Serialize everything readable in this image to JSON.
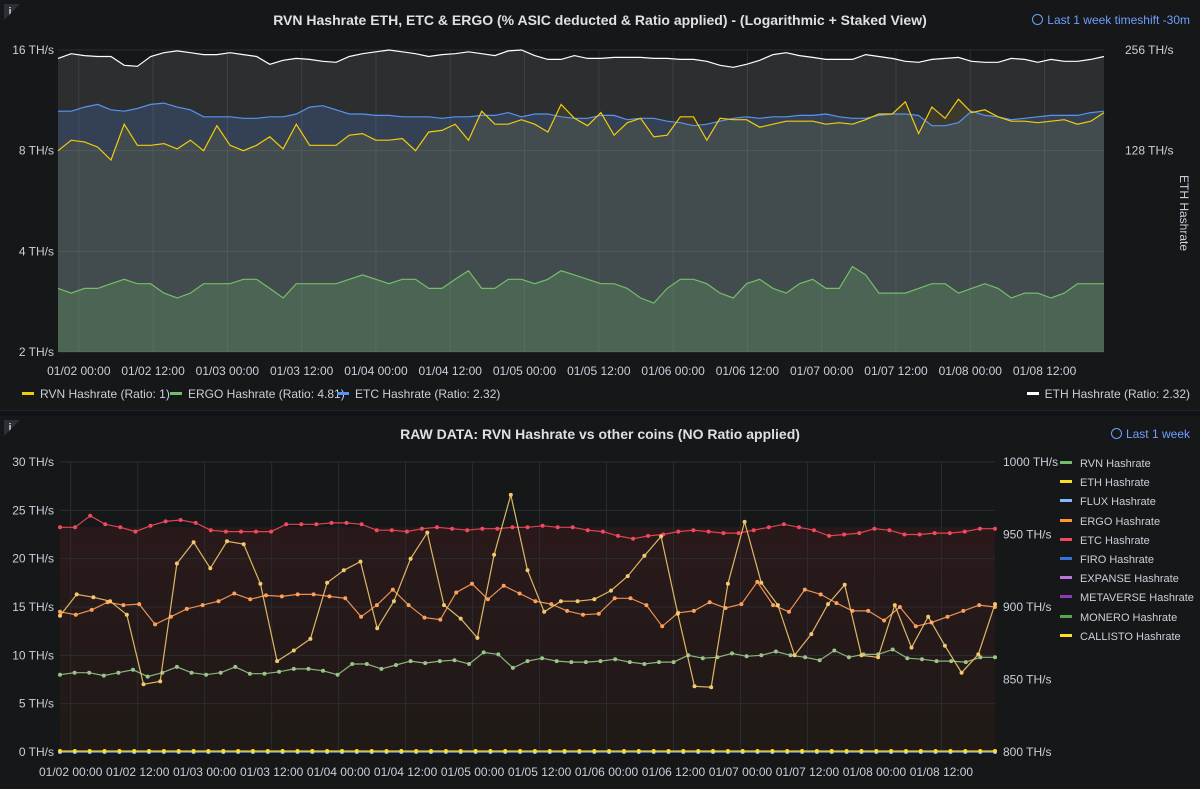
{
  "colors": {
    "rvn": "#f2cc0c",
    "ergo": "#73bf69",
    "etc": "#5794f2",
    "eth": "#ffffff",
    "flux": "#8ab8ff",
    "ergo_raw": "#ff9830",
    "etc_raw": "#f2495c",
    "firo": "#3274d9",
    "expanse": "#b877d9",
    "metaverse": "#8f3bb8",
    "monero": "#56a64b",
    "callisto": "#fade2a",
    "accent": "#6e9fff"
  },
  "top_panel": {
    "title": "RVN Hashrate ETH, ETC & ERGO (% ASIC deducted & Ratio applied) - (Logarithmic + Staked View)",
    "timeshift": "Last 1 week timeshift -30m",
    "info_icon": "info-icon",
    "legend": [
      {
        "label": "RVN Hashrate (Ratio: 1)",
        "color": "#f2cc0c"
      },
      {
        "label": "ERGO Hashrate (Ratio: 4.81)",
        "color": "#73bf69"
      },
      {
        "label": "ETC Hashrate (Ratio: 2.32)",
        "color": "#5794f2"
      },
      {
        "label": "ETH Hashrate (Ratio: 2.32)",
        "color": "#ffffff"
      }
    ]
  },
  "bottom_panel": {
    "title": "RAW DATA: RVN Hashrate vs other coins (NO Ratio applied)",
    "timeshift": "Last 1 week",
    "info_icon": "info-icon",
    "legend": [
      {
        "label": "RVN Hashrate",
        "color": "#73bf69"
      },
      {
        "label": "ETH Hashrate",
        "color": "#fade2a"
      },
      {
        "label": "FLUX Hashrate",
        "color": "#8ab8ff"
      },
      {
        "label": "ERGO Hashrate",
        "color": "#ff9830"
      },
      {
        "label": "ETC Hashrate",
        "color": "#f2495c"
      },
      {
        "label": "FIRO Hashrate",
        "color": "#3274d9"
      },
      {
        "label": "EXPANSE Hashrate",
        "color": "#b877d9"
      },
      {
        "label": "METAVERSE Hashrate",
        "color": "#8f3bb8"
      },
      {
        "label": "MONERO Hashrate",
        "color": "#56a64b"
      },
      {
        "label": "CALLISTO Hashrate",
        "color": "#fade2a"
      }
    ]
  },
  "chart_data": [
    {
      "type": "area",
      "title": "RVN Hashrate ETH, ETC & ERGO (% ASIC deducted & Ratio applied) - (Logarithmic + Staked View)",
      "stacked": true,
      "y_scale": "log2",
      "xlabels": [
        "01/02 00:00",
        "01/02 12:00",
        "01/03 00:00",
        "01/03 12:00",
        "01/04 00:00",
        "01/04 12:00",
        "01/05 00:00",
        "01/05 12:00",
        "01/06 00:00",
        "01/06 12:00",
        "01/07 00:00",
        "01/07 12:00",
        "01/08 00:00",
        "01/08 12:00"
      ],
      "x_range": [
        -0.28,
        13.8
      ],
      "y_left": {
        "ticks": [
          "2 TH/s",
          "4 TH/s",
          "8 TH/s",
          "16 TH/s"
        ],
        "range": [
          2,
          16
        ]
      },
      "y_right": {
        "label": "ETH Hashrate",
        "ticks": [
          "128 TH/s",
          "256 TH/s"
        ]
      },
      "grid": true,
      "legend_position": "bottom",
      "series": [
        {
          "name": "ERGO Hashrate (Ratio: 4.81)",
          "key": "ergo",
          "stack_top": [
            3.1,
            3.0,
            3.1,
            3.1,
            3.2,
            3.3,
            3.2,
            3.2,
            3.0,
            2.9,
            3.0,
            3.2,
            3.2,
            3.2,
            3.3,
            3.3,
            3.1,
            2.9,
            3.2,
            3.2,
            3.2,
            3.2,
            3.3,
            3.4,
            3.3,
            3.2,
            3.3,
            3.3,
            3.1,
            3.1,
            3.3,
            3.5,
            3.1,
            3.1,
            3.3,
            3.3,
            3.2,
            3.3,
            3.5,
            3.4,
            3.3,
            3.2,
            3.2,
            3.1,
            2.9,
            2.8,
            3.1,
            3.3,
            3.3,
            3.2,
            3.0,
            2.9,
            3.2,
            3.3,
            3.1,
            3.0,
            3.2,
            3.3,
            3.1,
            3.1,
            3.6,
            3.4,
            3.0,
            3.0,
            3.0,
            3.1,
            3.2,
            3.2,
            3.0,
            3.1,
            3.2,
            3.1,
            2.9,
            3.0,
            3.0,
            2.9,
            3.0,
            3.2,
            3.2,
            3.2
          ]
        },
        {
          "name": "RVN Hashrate (Ratio: 1)",
          "key": "rvn",
          "stack_top": [
            8.0,
            8.6,
            8.5,
            8.2,
            7.5,
            9.6,
            8.3,
            8.3,
            8.4,
            8.1,
            8.6,
            8.0,
            9.5,
            8.3,
            8.0,
            8.3,
            8.8,
            8.1,
            9.6,
            8.3,
            8.3,
            8.3,
            8.9,
            9.0,
            8.6,
            8.6,
            8.7,
            8.0,
            9.1,
            9.2,
            9.6,
            8.6,
            10.5,
            9.6,
            9.6,
            9.9,
            9.6,
            9.1,
            11.0,
            10.0,
            9.5,
            10.4,
            8.9,
            9.7,
            10.0,
            8.8,
            8.9,
            10.1,
            10.1,
            8.6,
            10.0,
            9.9,
            9.9,
            9.4,
            9.6,
            9.8,
            9.8,
            9.8,
            9.6,
            9.7,
            9.6,
            9.9,
            10.3,
            10.3,
            11.2,
            9.0,
            10.8,
            10.0,
            11.4,
            10.4,
            10.6,
            10.1,
            9.8,
            9.8,
            9.7,
            9.8,
            9.9,
            9.6,
            9.8,
            10.4
          ]
        },
        {
          "name": "ETC Hashrate (Ratio: 2.32)",
          "key": "etc",
          "stack_top": [
            10.5,
            10.5,
            10.8,
            11.0,
            10.6,
            10.5,
            10.7,
            11.0,
            11.1,
            10.8,
            10.6,
            10.1,
            10.1,
            10.1,
            10.0,
            10.0,
            10.1,
            10.1,
            10.3,
            10.8,
            10.9,
            10.6,
            10.3,
            10.3,
            10.2,
            10.2,
            10.1,
            10.1,
            10.1,
            10.0,
            10.1,
            10.1,
            10.2,
            10.2,
            10.4,
            10.1,
            10.3,
            10.3,
            10.1,
            10.0,
            10.0,
            10.2,
            10.2,
            9.9,
            10.0,
            10.0,
            9.8,
            9.7,
            9.5,
            9.6,
            9.8,
            10.0,
            10.1,
            10.0,
            10.1,
            10.1,
            10.2,
            10.2,
            10.3,
            10.1,
            10.0,
            10.0,
            10.2,
            10.3,
            10.3,
            10.2,
            9.5,
            9.5,
            9.7,
            10.5,
            10.2,
            10.1,
            9.9,
            10.0,
            10.1,
            10.2,
            10.2,
            10.2,
            10.4,
            10.5
          ]
        },
        {
          "name": "ETH Hashrate (Ratio: 2.32)",
          "key": "eth",
          "stack_top": [
            15.1,
            15.6,
            15.4,
            15.3,
            15.3,
            14.4,
            14.3,
            15.3,
            15.7,
            15.9,
            15.7,
            15.5,
            15.5,
            15.7,
            15.5,
            15.3,
            14.5,
            14.9,
            15.1,
            15.0,
            14.8,
            14.7,
            15.3,
            15.6,
            15.8,
            16.0,
            15.8,
            15.6,
            15.3,
            15.5,
            15.6,
            15.8,
            15.6,
            15.4,
            15.9,
            16.0,
            15.4,
            15.0,
            15.0,
            15.4,
            15.1,
            15.1,
            15.2,
            15.2,
            15.2,
            15.1,
            15.1,
            15.0,
            15.0,
            14.8,
            14.4,
            14.2,
            14.5,
            14.9,
            15.5,
            15.7,
            15.4,
            15.2,
            15.0,
            15.0,
            15.0,
            15.5,
            15.3,
            15.1,
            14.8,
            14.7,
            15.0,
            15.1,
            15.2,
            14.8,
            14.7,
            14.7,
            15.1,
            15.0,
            14.7,
            15.0,
            14.8,
            14.8,
            15.0,
            15.3
          ]
        }
      ]
    },
    {
      "type": "line",
      "title": "RAW DATA: RVN Hashrate vs other coins (NO Ratio applied)",
      "xlabels": [
        "01/02 00:00",
        "01/02 12:00",
        "01/03 00:00",
        "01/03 12:00",
        "01/04 00:00",
        "01/04 12:00",
        "01/05 00:00",
        "01/05 12:00",
        "01/06 00:00",
        "01/06 12:00",
        "01/07 00:00",
        "01/07 12:00",
        "01/08 00:00",
        "01/08 12:00"
      ],
      "x_range": [
        -0.16,
        13.8
      ],
      "y_left": {
        "ticks": [
          "0 TH/s",
          "5 TH/s",
          "10 TH/s",
          "15 TH/s",
          "20 TH/s",
          "25 TH/s",
          "30 TH/s"
        ],
        "range": [
          0,
          30
        ]
      },
      "y_right": {
        "ticks": [
          "800 TH/s",
          "850 TH/s",
          "900 TH/s",
          "950 TH/s",
          "1000 TH/s"
        ],
        "range": [
          800,
          1000
        ]
      },
      "grid": true,
      "legend_position": "right",
      "series": [
        {
          "name": "RVN Hashrate",
          "key": "rvn",
          "axis": "left",
          "values": [
            8.0,
            8.2,
            8.2,
            7.9,
            8.2,
            8.5,
            7.8,
            8.2,
            8.8,
            8.2,
            8.0,
            8.2,
            8.8,
            8.1,
            8.1,
            8.3,
            8.6,
            8.6,
            8.4,
            8.0,
            9.1,
            9.1,
            8.6,
            9.0,
            9.4,
            9.2,
            9.4,
            9.5,
            9.1,
            10.3,
            10.1,
            8.7,
            9.4,
            9.7,
            9.4,
            9.3,
            9.3,
            9.4,
            9.6,
            9.3,
            9.1,
            9.3,
            9.3,
            10.0,
            9.7,
            9.8,
            10.2,
            9.9,
            10.0,
            10.4,
            10.0,
            9.8,
            9.5,
            10.5,
            9.8,
            10.1,
            10.1,
            10.6,
            9.7,
            9.6,
            9.4,
            9.4,
            9.3,
            9.8,
            9.8
          ]
        },
        {
          "name": "ETH Hashrate",
          "key": "eth",
          "axis": "left",
          "values": [
            14.1,
            16.3,
            16.0,
            15.6,
            14.2,
            7.0,
            7.3,
            19.5,
            21.7,
            19.0,
            21.8,
            21.5,
            17.4,
            9.4,
            10.5,
            11.7,
            17.5,
            18.8,
            19.7,
            12.8,
            15.6,
            20.0,
            22.7,
            15.2,
            13.8,
            11.8,
            20.4,
            26.6,
            18.8,
            14.5,
            15.6,
            15.6,
            15.8,
            16.7,
            18.2,
            20.3,
            22.3,
            14.3,
            6.8,
            6.7,
            17.4,
            23.8,
            17.5,
            15.2,
            10.0,
            12.2,
            15.3,
            17.3,
            10.0,
            9.8,
            15.2,
            10.8,
            14.0,
            11.0,
            8.2,
            10.1,
            15.3
          ]
        },
        {
          "name": "ERGO Hashrate",
          "key": "ergo",
          "axis": "left",
          "values": [
            14.5,
            14.2,
            14.7,
            15.5,
            15.2,
            15.3,
            13.2,
            14.0,
            14.8,
            15.2,
            15.6,
            16.4,
            15.8,
            16.2,
            16.1,
            16.3,
            16.3,
            16.1,
            15.9,
            14.0,
            15.2,
            16.8,
            15.2,
            13.9,
            13.7,
            16.5,
            17.4,
            15.8,
            17.2,
            16.4,
            15.6,
            15.3,
            14.6,
            14.2,
            14.3,
            15.9,
            15.9,
            15.2,
            13.0,
            14.4,
            14.6,
            15.5,
            14.9,
            15.3,
            17.6,
            15.2,
            14.5,
            16.8,
            16.3,
            15.4,
            14.6,
            14.6,
            13.6,
            15.0,
            13.0,
            13.4,
            14.0,
            14.6,
            15.2,
            15.0
          ]
        },
        {
          "name": "ETC Hashrate",
          "key": "etc",
          "axis": "right",
          "values": [
            955,
            955,
            963,
            957,
            955,
            952,
            956,
            959,
            960,
            958,
            953,
            952,
            952,
            952,
            952,
            957,
            957,
            957,
            958,
            958,
            957,
            953,
            953,
            952,
            954,
            955,
            954,
            953,
            954,
            954,
            955,
            955,
            956,
            955,
            955,
            953,
            952,
            949,
            947,
            949,
            950,
            952,
            953,
            952,
            951,
            951,
            953,
            955,
            957,
            955,
            953,
            949,
            950,
            951,
            954,
            953,
            950,
            950,
            951,
            951,
            952,
            954,
            954
          ]
        },
        {
          "name": "FLUX Hashrate",
          "key": "flux",
          "axis": "left",
          "values": [
            0,
            0,
            0,
            0,
            0,
            0,
            0,
            0,
            0,
            0,
            0,
            0,
            0,
            0,
            0,
            0,
            0,
            0,
            0,
            0,
            0,
            0,
            0,
            0,
            0,
            0,
            0,
            0,
            0,
            0,
            0,
            0,
            0,
            0,
            0,
            0,
            0,
            0,
            0,
            0,
            0,
            0,
            0,
            0,
            0,
            0,
            0,
            0,
            0,
            0,
            0,
            0,
            0,
            0,
            0,
            0,
            0,
            0,
            0,
            0,
            0,
            0,
            0,
            0
          ]
        },
        {
          "name": "CALLISTO Hashrate",
          "key": "callisto",
          "axis": "left",
          "values": [
            0.1,
            0.1,
            0.1,
            0.1,
            0.1,
            0.1,
            0.1,
            0.1,
            0.1,
            0.1,
            0.1,
            0.1,
            0.1,
            0.1,
            0.1,
            0.1,
            0.1,
            0.1,
            0.1,
            0.1,
            0.1,
            0.1,
            0.1,
            0.1,
            0.1,
            0.1,
            0.1,
            0.1,
            0.1,
            0.1,
            0.1,
            0.1,
            0.1,
            0.1,
            0.1,
            0.1,
            0.1,
            0.1,
            0.1,
            0.1,
            0.1,
            0.1,
            0.1,
            0.1,
            0.1,
            0.1,
            0.1,
            0.1,
            0.1,
            0.1,
            0.1,
            0.1,
            0.1,
            0.1,
            0.1,
            0.1,
            0.1,
            0.1,
            0.1,
            0.1,
            0.1,
            0.1,
            0.1,
            0.1
          ]
        }
      ]
    }
  ]
}
